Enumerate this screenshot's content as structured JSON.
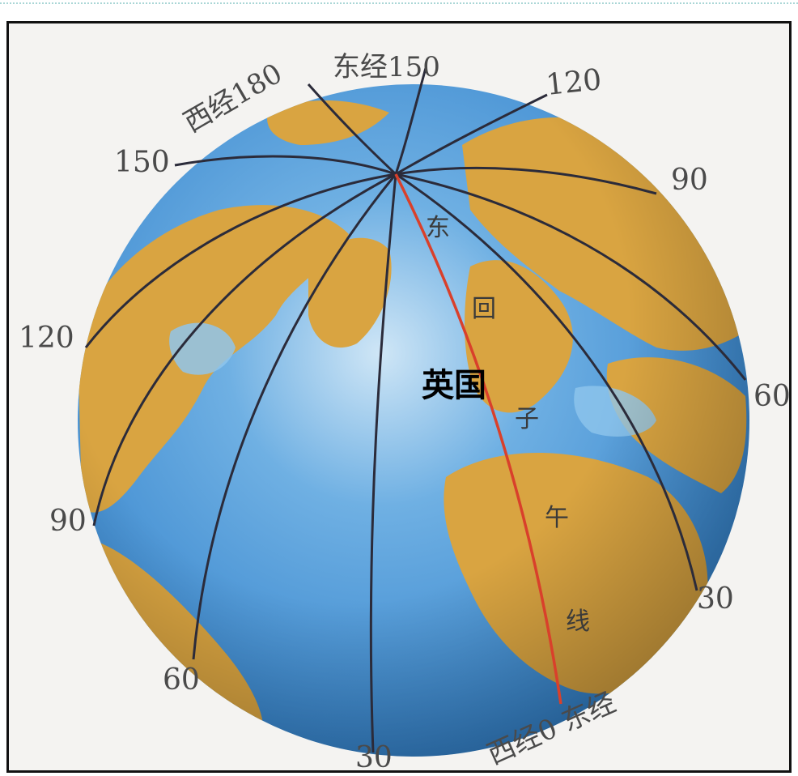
{
  "map": {
    "country_label": "英国",
    "meridian_labels": {
      "w180": "西经180",
      "e150_top": "东经150",
      "e120_top": "120",
      "e90": "90",
      "e60": "60",
      "e30": "30",
      "w150": "150",
      "w120": "120",
      "w90": "90",
      "w60": "60",
      "w30": "30",
      "prime": "西经0 东经"
    },
    "handwritten": [
      "东",
      "回",
      "子",
      "午",
      "线"
    ],
    "colors": {
      "ocean": "#3f8fd6",
      "land": "#d9a441",
      "grid": "#2b2b3a",
      "prime_meridian": "#d9402b"
    }
  }
}
